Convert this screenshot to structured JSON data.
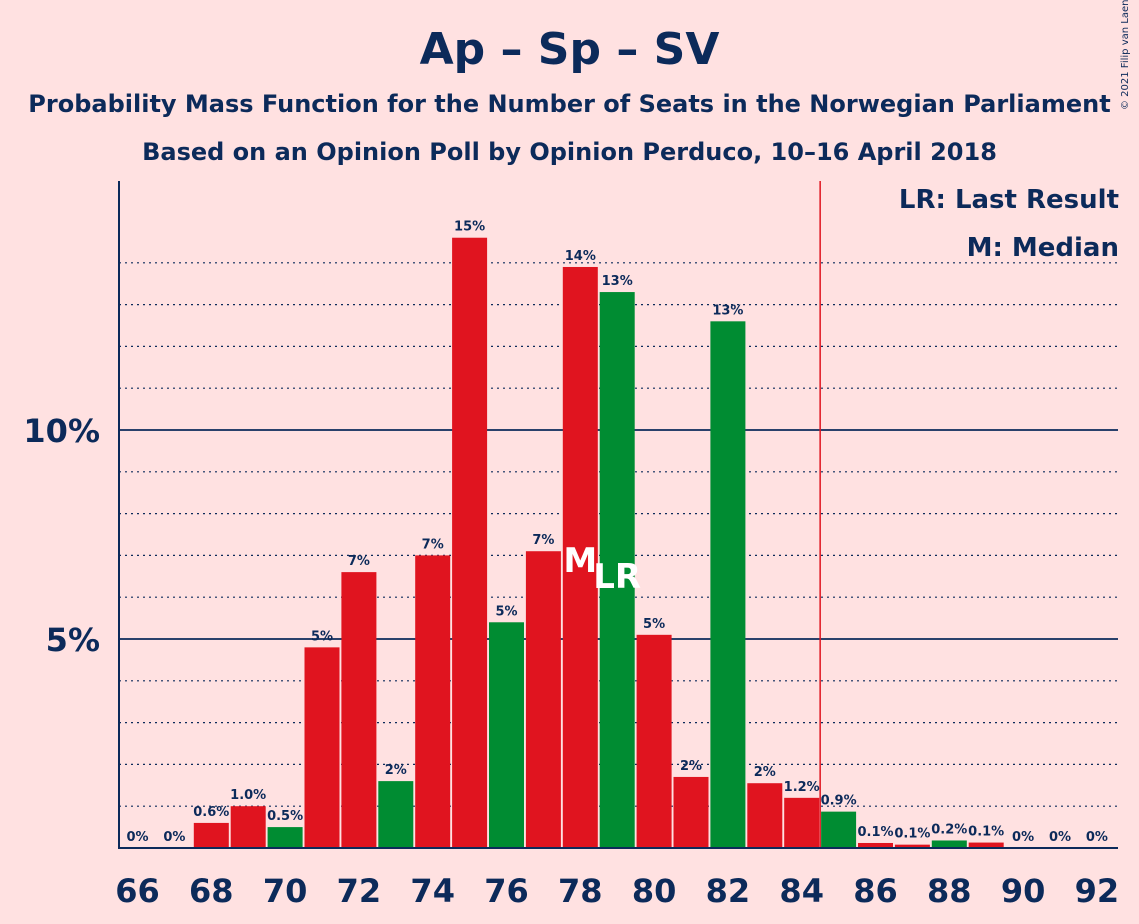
{
  "title": "Ap – Sp – SV",
  "subtitle1": "Probability Mass Function for the Number of Seats in the Norwegian Parliament",
  "subtitle2": "Based on an Opinion Poll by Opinion Perduco, 10–16 April 2018",
  "copyright": "© 2021 Filip van Laenen",
  "legend": {
    "last_result": "LR: Last Result",
    "median": "M: Median"
  },
  "colors": {
    "background": "#FFE1E1",
    "red": "#E0141F",
    "green": "#008C32",
    "text": "#0C2A5A",
    "majority_line": "#E0141F"
  },
  "chart_data": {
    "type": "bar",
    "x": [
      66,
      67,
      68,
      69,
      70,
      71,
      72,
      73,
      74,
      75,
      76,
      77,
      78,
      79,
      80,
      81,
      82,
      83,
      84,
      85,
      86,
      87,
      88,
      89,
      90,
      91,
      92
    ],
    "values": [
      0,
      0,
      0.6,
      1.0,
      0.5,
      4.8,
      6.6,
      1.6,
      7.0,
      14.6,
      5.4,
      7.1,
      13.9,
      13.3,
      5.1,
      1.7,
      12.6,
      1.55,
      1.2,
      0.87,
      0.12,
      0.08,
      0.18,
      0.13,
      0,
      0,
      0
    ],
    "labels": [
      "0%",
      "0%",
      "0.6%",
      "1.0%",
      "0.5%",
      "5%",
      "7%",
      "2%",
      "7%",
      "15%",
      "5%",
      "7%",
      "14%",
      "13%",
      "5%",
      "2%",
      "13%",
      "2%",
      "1.2%",
      "0.9%",
      "0.1%",
      "0.1%",
      "0.2%",
      "0.1%",
      "0%",
      "0%",
      "0%"
    ],
    "bar_colors": [
      "red",
      "red",
      "red",
      "red",
      "green",
      "red",
      "red",
      "green",
      "red",
      "red",
      "green",
      "red",
      "red",
      "green",
      "red",
      "red",
      "green",
      "red",
      "red",
      "green",
      "red",
      "red",
      "green",
      "red",
      "red",
      "red",
      "red"
    ],
    "x_tick_labels": [
      "66",
      "68",
      "70",
      "72",
      "74",
      "76",
      "78",
      "80",
      "82",
      "84",
      "86",
      "88",
      "90",
      "92"
    ],
    "y_tick_labels": [
      {
        "value": 5,
        "label": "5%"
      },
      {
        "value": 10,
        "label": "10%"
      }
    ],
    "ylim": [
      0,
      16
    ],
    "minor_gridline_step": 1,
    "median": {
      "x": 78,
      "marker": "M"
    },
    "last_result": {
      "x": 79,
      "marker": "LR"
    },
    "majority_line_x": 84.5
  }
}
